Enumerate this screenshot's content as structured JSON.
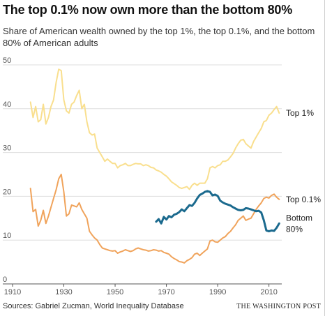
{
  "header": {
    "title": "The top 0.1% now own more than the bottom 80%",
    "subtitle": "Share of American wealth owned by the top 1%, the top 0.1%, and the bottom 80% of American adults"
  },
  "footer": {
    "source": "Sources: Gabriel Zucman, World Inequality Database",
    "publisher": "THE WASHINGTON POST"
  },
  "chart_data": {
    "type": "line",
    "xlim": [
      1910,
      2015
    ],
    "ylim": [
      0,
      50
    ],
    "x_ticks": [
      "1910",
      "1930",
      "1950",
      "1970",
      "1990",
      "2010"
    ],
    "y_ticks": [
      "0",
      "10",
      "20",
      "30",
      "40",
      "50"
    ],
    "grid": true,
    "series": [
      {
        "name": "Top 1%",
        "label_lines": [
          "Top 1%"
        ],
        "color": "#f9df8e",
        "width": 2,
        "x": [
          1917,
          1918,
          1919,
          1920,
          1921,
          1922,
          1923,
          1924,
          1925,
          1926,
          1927,
          1928,
          1929,
          1930,
          1931,
          1932,
          1933,
          1934,
          1935,
          1936,
          1937,
          1938,
          1939,
          1940,
          1941,
          1942,
          1943,
          1944,
          1945,
          1946,
          1947,
          1948,
          1949,
          1950,
          1951,
          1952,
          1953,
          1954,
          1955,
          1956,
          1957,
          1958,
          1959,
          1960,
          1961,
          1962,
          1963,
          1964,
          1965,
          1966,
          1967,
          1968,
          1969,
          1970,
          1971,
          1972,
          1973,
          1974,
          1975,
          1976,
          1977,
          1978,
          1979,
          1980,
          1981,
          1982,
          1983,
          1984,
          1985,
          1986,
          1987,
          1988,
          1989,
          1990,
          1991,
          1992,
          1993,
          1994,
          1995,
          1996,
          1997,
          1998,
          1999,
          2000,
          2001,
          2002,
          2003,
          2004,
          2005,
          2006,
          2007,
          2008,
          2009,
          2010,
          2011,
          2012,
          2013,
          2014
        ],
        "values": [
          41.5,
          38,
          40.5,
          37,
          37.5,
          41,
          36.5,
          38,
          40.5,
          42,
          46,
          49,
          48.7,
          42,
          39.5,
          39,
          41,
          41.5,
          43,
          44.2,
          40,
          41,
          37,
          34.5,
          34,
          34.2,
          31,
          30,
          29,
          28,
          28.5,
          28,
          27.5,
          27.5,
          26.5,
          27,
          27.2,
          27.5,
          27,
          27,
          27.3,
          27.5,
          27.4,
          27.4,
          27,
          27.2,
          27,
          26.6,
          26.5,
          26,
          25.8,
          25.5,
          25,
          24.6,
          24,
          23.3,
          22.9,
          22.5,
          22,
          21.8,
          22,
          22.2,
          21.6,
          22.5,
          23,
          22.5,
          23,
          23,
          23,
          24,
          26.5,
          26.8,
          26.5,
          27,
          27.2,
          28,
          28,
          28.3,
          29,
          29.8,
          31,
          32,
          32.8,
          33,
          32,
          31.5,
          31,
          32.5,
          33.5,
          34.5,
          35.5,
          37,
          37.3,
          38.5,
          39,
          39.8,
          40.5,
          39
        ],
        "end_value": 39
      },
      {
        "name": "Top 0.1%",
        "label_lines": [
          "Top 0.1%"
        ],
        "color": "#f0a35b",
        "width": 2,
        "x": [
          1917,
          1918,
          1919,
          1920,
          1921,
          1922,
          1923,
          1924,
          1925,
          1926,
          1927,
          1928,
          1929,
          1930,
          1931,
          1932,
          1933,
          1934,
          1935,
          1936,
          1937,
          1938,
          1939,
          1940,
          1941,
          1942,
          1943,
          1944,
          1945,
          1946,
          1947,
          1948,
          1949,
          1950,
          1951,
          1952,
          1953,
          1954,
          1955,
          1956,
          1957,
          1958,
          1959,
          1960,
          1961,
          1962,
          1963,
          1964,
          1965,
          1966,
          1967,
          1968,
          1969,
          1970,
          1971,
          1972,
          1973,
          1974,
          1975,
          1976,
          1977,
          1978,
          1979,
          1980,
          1981,
          1982,
          1983,
          1984,
          1985,
          1986,
          1987,
          1988,
          1989,
          1990,
          1991,
          1992,
          1993,
          1994,
          1995,
          1996,
          1997,
          1998,
          1999,
          2000,
          2001,
          2002,
          2003,
          2004,
          2005,
          2006,
          2007,
          2008,
          2009,
          2010,
          2011,
          2012,
          2013,
          2014
        ],
        "values": [
          21.8,
          16.5,
          17,
          13.2,
          14.5,
          16.8,
          13.8,
          15.5,
          17.5,
          19.5,
          21.5,
          24,
          25,
          21,
          15.5,
          16,
          18,
          17.8,
          17.6,
          18.5,
          17,
          16,
          15,
          12,
          11.2,
          10.5,
          10,
          9,
          8.2,
          8,
          7.8,
          7.6,
          7.5,
          7.6,
          7,
          7.3,
          7.5,
          7.8,
          7.6,
          7.4,
          7.6,
          8,
          8.2,
          8,
          7.8,
          7.7,
          7.5,
          7.6,
          7.8,
          7.7,
          7.5,
          7.6,
          7.2,
          7,
          6.8,
          6.2,
          5.8,
          5.5,
          5.1,
          5,
          4.8,
          5.3,
          5.6,
          6,
          6.8,
          7,
          6.5,
          7,
          7.5,
          8,
          9.8,
          10,
          9.6,
          9.5,
          10,
          10.5,
          10.8,
          11.5,
          12,
          12.8,
          13.5,
          14.5,
          15,
          15.5,
          14.5,
          14.8,
          15,
          16,
          17,
          17.8,
          18.5,
          19.5,
          19.8,
          19.6,
          20.2,
          20.5,
          19.8,
          19.3
        ],
        "end_value": 19.3
      },
      {
        "name": "Bottom 80%",
        "label_lines": [
          "Bottom",
          "80%"
        ],
        "color": "#1b6a8e",
        "width": 3,
        "x": [
          1966,
          1967,
          1968,
          1969,
          1970,
          1971,
          1972,
          1973,
          1974,
          1975,
          1976,
          1977,
          1978,
          1979,
          1980,
          1981,
          1982,
          1983,
          1984,
          1985,
          1986,
          1987,
          1988,
          1989,
          1990,
          1991,
          1992,
          1993,
          1994,
          1995,
          1996,
          1997,
          1998,
          1999,
          2000,
          2001,
          2002,
          2003,
          2004,
          2005,
          2006,
          2007,
          2008,
          2009,
          2010,
          2011,
          2012,
          2013,
          2014
        ],
        "values": [
          14.2,
          14.8,
          13.8,
          15.3,
          14.7,
          15.5,
          15.2,
          15.8,
          16,
          16.4,
          17,
          16.6,
          17.3,
          18,
          17.8,
          18.5,
          19.5,
          20.3,
          20.6,
          21,
          21.2,
          21,
          20.2,
          20.4,
          20.1,
          19,
          18.6,
          18.3,
          18.1,
          17.9,
          17.5,
          17.2,
          16.9,
          16.8,
          16.9,
          17.3,
          17.2,
          17,
          16.8,
          16.6,
          16.7,
          16.3,
          14.5,
          12.2,
          12,
          12.2,
          12.1,
          12.8,
          13.8
        ],
        "end_value": 13.8
      }
    ]
  }
}
